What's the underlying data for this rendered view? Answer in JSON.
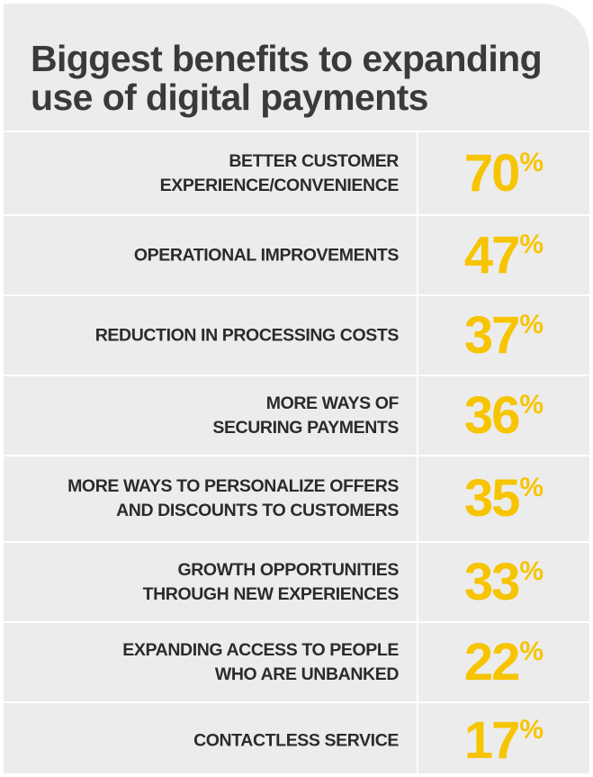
{
  "title": "Biggest benefits to expanding use of digital payments",
  "colors": {
    "background": "#ececed",
    "accent": "#f7c400",
    "text": "#2b2b2d",
    "title": "#3a3a3c"
  },
  "chart_data": {
    "type": "table",
    "title": "Biggest benefits to expanding use of digital payments",
    "unit": "%",
    "categories": [
      "BETTER CUSTOMER\nEXPERIENCE/CONVENIENCE",
      "OPERATIONAL IMPROVEMENTS",
      "REDUCTION IN PROCESSING COSTS",
      "MORE WAYS OF\nSECURING PAYMENTS",
      "MORE WAYS TO PERSONALIZE OFFERS\nAND DISCOUNTS TO CUSTOMERS",
      "GROWTH OPPORTUNITIES\nTHROUGH NEW EXPERIENCES",
      "EXPANDING ACCESS TO PEOPLE\nWHO ARE UNBANKED",
      "CONTACTLESS SERVICE"
    ],
    "values": [
      70,
      47,
      37,
      36,
      35,
      33,
      22,
      17
    ]
  }
}
